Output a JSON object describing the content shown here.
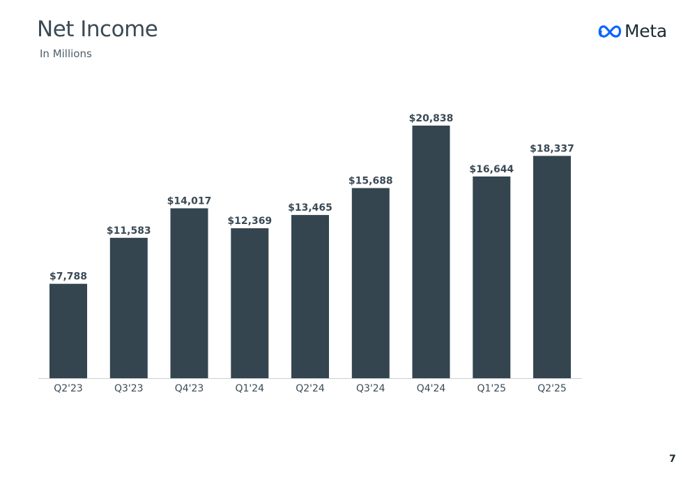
{
  "header": {
    "title": "Net Income",
    "subtitle": "In Millions",
    "logo_text": "Meta",
    "page_number": "7"
  },
  "colors": {
    "bar": "#34454f",
    "axis": "#c9cfd3",
    "logo_blue": "#0866ff"
  },
  "chart_data": {
    "type": "bar",
    "title": "Net Income",
    "subtitle": "In Millions",
    "xlabel": "",
    "ylabel": "",
    "categories": [
      "Q2'23",
      "Q3'23",
      "Q4'23",
      "Q1'24",
      "Q2'24",
      "Q3'24",
      "Q4'24",
      "Q1'25",
      "Q2'25"
    ],
    "values": [
      7788,
      11583,
      14017,
      12369,
      13465,
      15688,
      20838,
      16644,
      18337
    ],
    "data_labels": [
      "$7,788",
      "$11,583",
      "$14,017",
      "$12,369",
      "$13,465",
      "$15,688",
      "$20,838",
      "$16,644",
      "$18,337"
    ],
    "ylim": [
      0,
      20838
    ],
    "grid": false,
    "legend": "none"
  }
}
